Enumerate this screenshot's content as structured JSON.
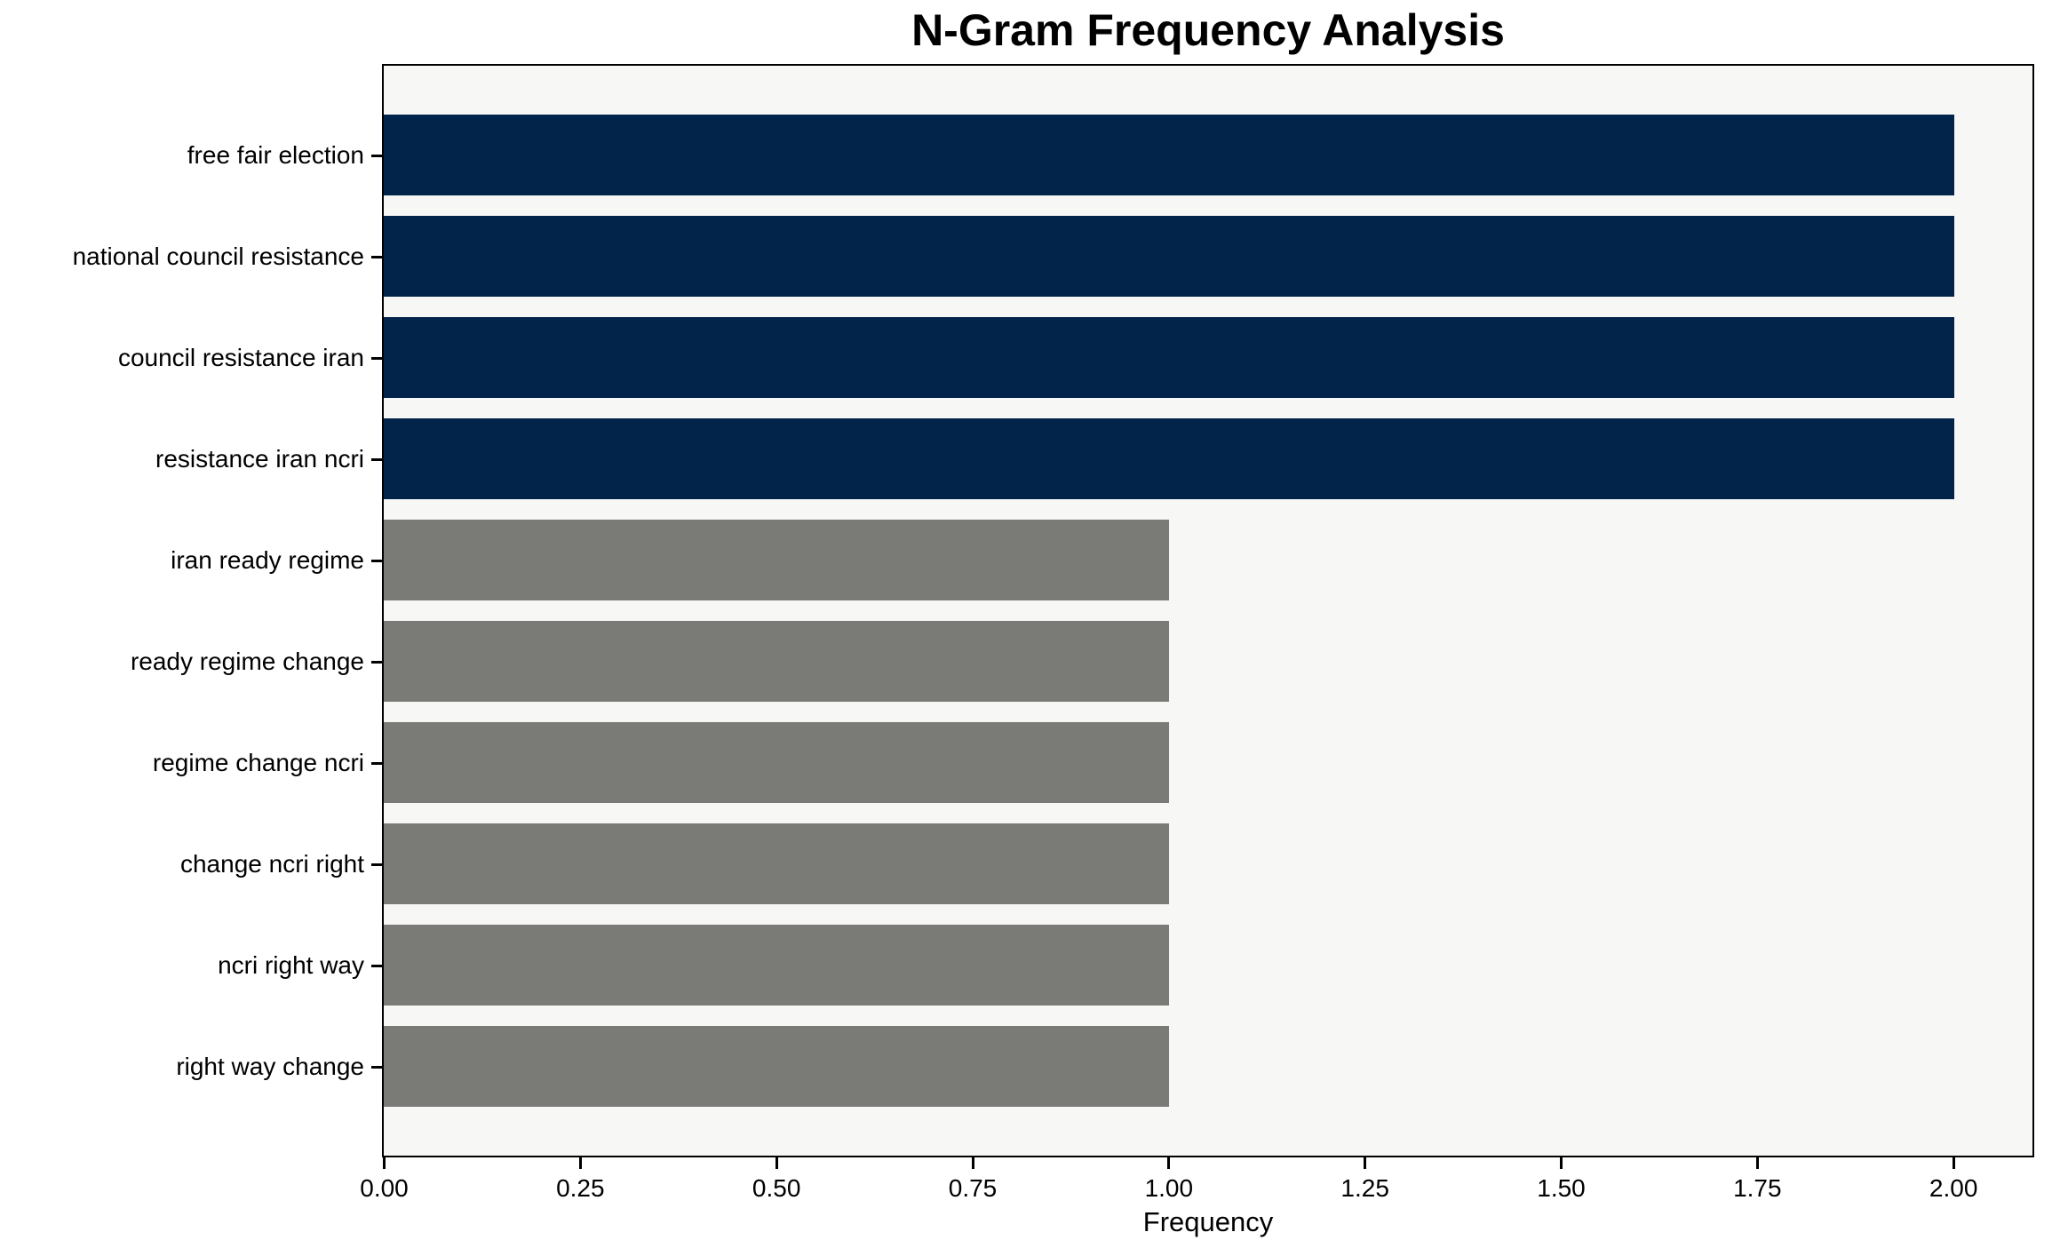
{
  "chart_data": {
    "type": "bar",
    "orientation": "horizontal",
    "title": "N-Gram Frequency Analysis",
    "xlabel": "Frequency",
    "ylabel": "",
    "categories": [
      "free fair election",
      "national council resistance",
      "council resistance iran",
      "resistance iran ncri",
      "iran ready regime",
      "ready regime change",
      "regime change ncri",
      "change ncri right",
      "ncri right way",
      "right way change"
    ],
    "values": [
      2,
      2,
      2,
      2,
      1,
      1,
      1,
      1,
      1,
      1
    ],
    "bar_colors": [
      "#02234a",
      "#02234a",
      "#02234a",
      "#02234a",
      "#7a7a76",
      "#7a7a76",
      "#7a7a76",
      "#7a7a76",
      "#7a7a76",
      "#7a7a76"
    ],
    "xlim": [
      0,
      2.1
    ],
    "xticks": [
      0,
      0.25,
      0.5,
      0.75,
      1.0,
      1.25,
      1.5,
      1.75,
      2.0
    ],
    "xtick_labels": [
      "0.00",
      "0.25",
      "0.50",
      "0.75",
      "1.00",
      "1.25",
      "1.50",
      "1.75",
      "2.00"
    ],
    "grid": false,
    "legend": null,
    "colors": {
      "high_frequency_bar": "#02234a",
      "low_frequency_bar": "#7a7a76",
      "plot_background": "#f7f7f6",
      "figure_background": "#ffffff",
      "axis": "#000000"
    }
  }
}
